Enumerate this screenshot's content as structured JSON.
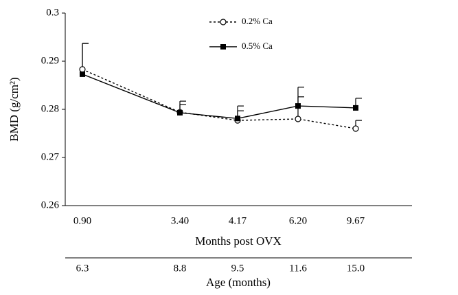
{
  "chart_data": {
    "type": "line",
    "y_label": "BMD (g/cm²)",
    "x_label": "Months post OVX",
    "categories": [
      "0.90",
      "3.40",
      "4.17",
      "6.20",
      "9.67"
    ],
    "x2_label": "Age (months)",
    "categories2": [
      "6.3",
      "8.8",
      "9.5",
      "11.6",
      "15.0"
    ],
    "ylim": [
      0.26,
      0.3
    ],
    "yticks": [
      0.26,
      0.27,
      0.28,
      0.29,
      0.3
    ],
    "series": [
      {
        "name": "0.2% Ca",
        "color": "#000000",
        "dash": true,
        "marker": "open-circle",
        "values": [
          0.2883,
          0.2794,
          0.2777,
          0.278,
          0.276
        ],
        "errors": [
          0.0054,
          0.0016,
          0.002,
          0.0046,
          0.0017
        ]
      },
      {
        "name": "0.5% Ca",
        "color": "#000000",
        "dash": false,
        "marker": "filled-square",
        "values": [
          0.2873,
          0.2793,
          0.2781,
          0.2807,
          0.2803
        ],
        "errors": [
          0.0064,
          0.0024,
          0.0026,
          0.0039,
          0.002
        ]
      }
    ]
  }
}
